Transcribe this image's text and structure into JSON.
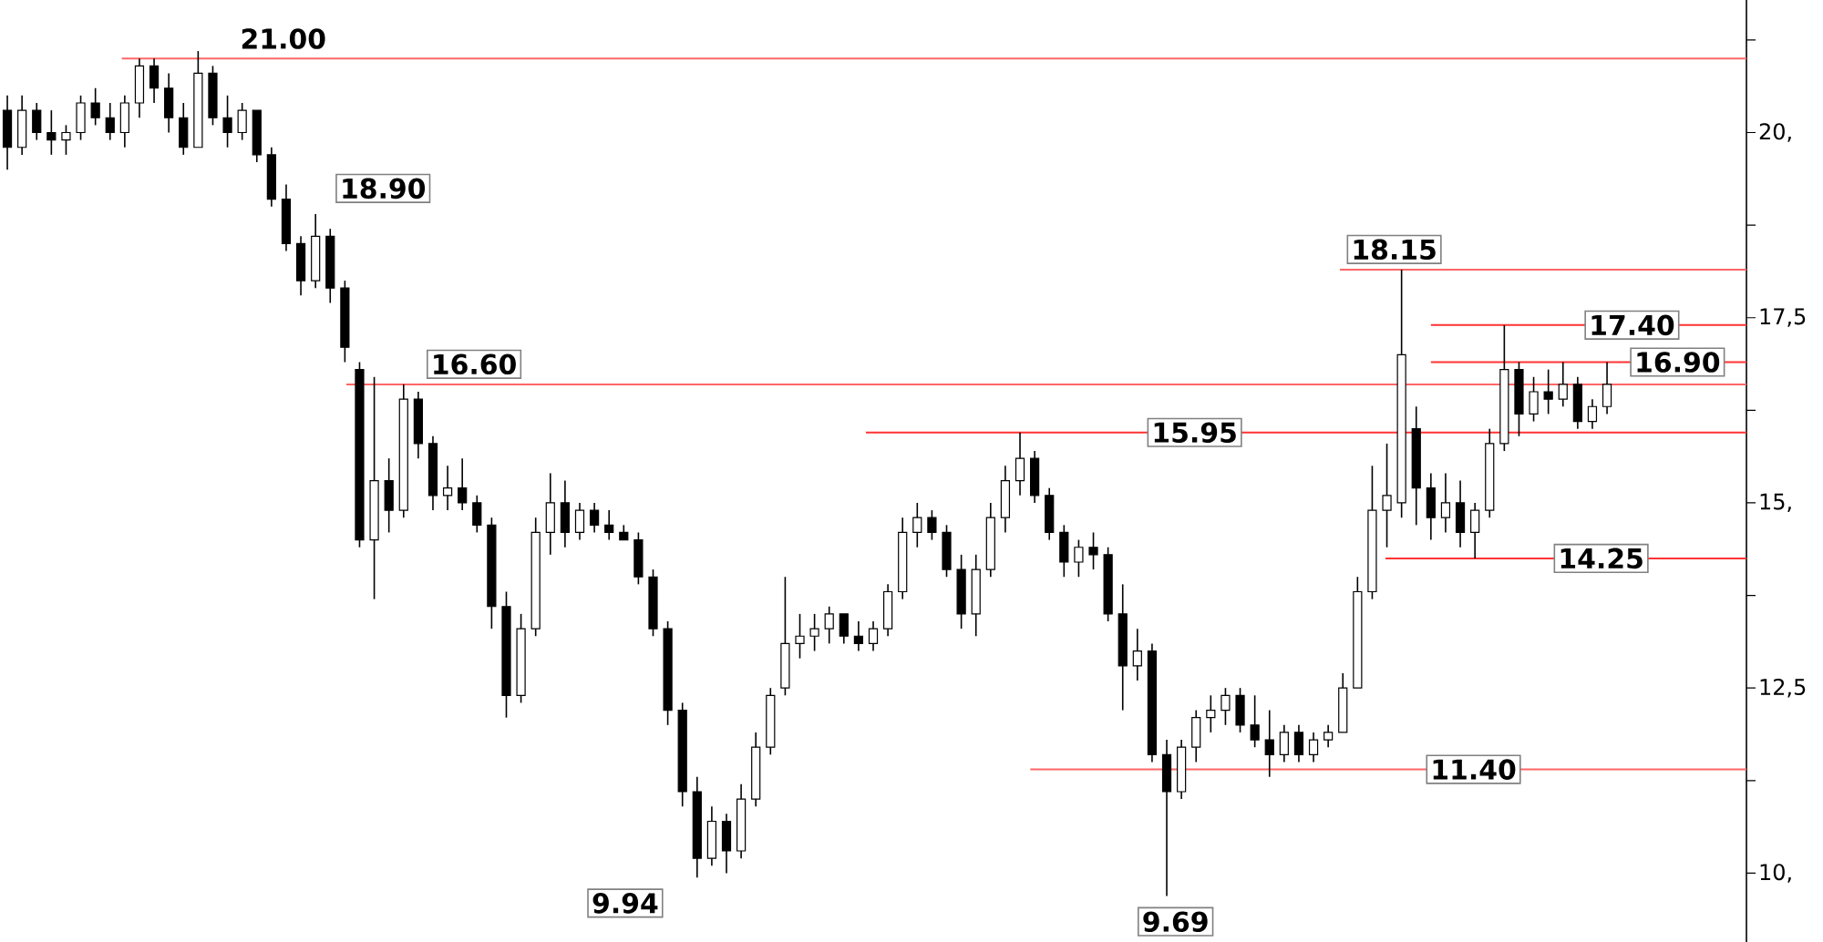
{
  "chart_data": {
    "type": "candlestick",
    "categories": [
      null,
      null,
      null,
      null,
      null,
      null,
      null,
      null,
      null,
      null,
      null,
      null,
      null,
      null,
      null,
      null,
      null,
      null,
      null,
      null,
      null,
      null,
      null,
      null,
      null,
      null,
      null,
      null,
      null,
      null,
      null,
      null,
      null,
      null,
      null,
      null,
      null,
      null,
      null,
      null,
      null,
      null,
      null,
      null,
      null,
      null,
      null,
      null,
      null,
      null,
      null,
      null,
      null,
      null,
      null,
      null,
      null,
      null,
      null,
      null,
      null,
      null,
      null,
      null,
      null,
      null,
      null,
      null,
      null,
      null,
      null,
      null,
      null,
      null,
      null,
      null,
      null,
      null,
      null,
      null,
      null,
      null,
      null,
      null,
      null,
      null,
      null,
      null,
      null,
      null,
      null,
      null,
      null,
      null,
      null,
      null,
      null,
      null,
      null,
      null,
      null,
      null,
      null,
      null,
      null,
      null,
      null,
      null,
      null,
      null,
      null,
      null,
      null,
      null,
      null,
      null,
      null,
      null,
      null
    ],
    "color": "#000000",
    "ohlc": [
      [
        20.3,
        20.5,
        19.5,
        19.8
      ],
      [
        19.8,
        20.5,
        19.7,
        20.3
      ],
      [
        20.3,
        20.4,
        19.9,
        20.0
      ],
      [
        20.0,
        20.3,
        19.7,
        19.9
      ],
      [
        19.9,
        20.1,
        19.7,
        20.0
      ],
      [
        20.0,
        20.5,
        19.9,
        20.4
      ],
      [
        20.4,
        20.6,
        20.1,
        20.2
      ],
      [
        20.2,
        20.4,
        19.9,
        20.0
      ],
      [
        20.0,
        20.5,
        19.8,
        20.4
      ],
      [
        20.4,
        21.0,
        20.2,
        20.9
      ],
      [
        20.9,
        21.0,
        20.4,
        20.6
      ],
      [
        20.6,
        20.8,
        20.0,
        20.2
      ],
      [
        20.2,
        20.4,
        19.7,
        19.8
      ],
      [
        19.8,
        21.1,
        19.8,
        20.8
      ],
      [
        20.8,
        20.9,
        20.1,
        20.2
      ],
      [
        20.2,
        20.5,
        19.8,
        20.0
      ],
      [
        20.0,
        20.4,
        19.9,
        20.3
      ],
      [
        20.3,
        20.3,
        19.6,
        19.7
      ],
      [
        19.7,
        19.8,
        19.0,
        19.1
      ],
      [
        19.1,
        19.3,
        18.4,
        18.5
      ],
      [
        18.5,
        18.6,
        17.8,
        18.0
      ],
      [
        18.0,
        18.9,
        17.9,
        18.6
      ],
      [
        18.6,
        18.7,
        17.7,
        17.9
      ],
      [
        17.9,
        18.0,
        16.9,
        17.1
      ],
      [
        16.8,
        16.9,
        14.4,
        14.5
      ],
      [
        14.5,
        16.7,
        13.7,
        15.3
      ],
      [
        15.3,
        15.6,
        14.6,
        14.9
      ],
      [
        14.9,
        16.6,
        14.8,
        16.4
      ],
      [
        16.4,
        16.5,
        15.6,
        15.8
      ],
      [
        15.8,
        15.9,
        14.9,
        15.1
      ],
      [
        15.1,
        15.5,
        14.9,
        15.2
      ],
      [
        15.2,
        15.6,
        14.9,
        15.0
      ],
      [
        15.0,
        15.1,
        14.6,
        14.7
      ],
      [
        14.7,
        14.8,
        13.3,
        13.6
      ],
      [
        13.6,
        13.8,
        12.1,
        12.4
      ],
      [
        12.4,
        13.5,
        12.3,
        13.3
      ],
      [
        13.3,
        14.8,
        13.2,
        14.6
      ],
      [
        14.6,
        15.4,
        14.3,
        15.0
      ],
      [
        15.0,
        15.3,
        14.4,
        14.6
      ],
      [
        14.6,
        15.0,
        14.5,
        14.9
      ],
      [
        14.9,
        15.0,
        14.6,
        14.7
      ],
      [
        14.7,
        14.9,
        14.5,
        14.6
      ],
      [
        14.6,
        14.7,
        14.5,
        14.5
      ],
      [
        14.5,
        14.6,
        13.9,
        14.0
      ],
      [
        14.0,
        14.1,
        13.2,
        13.3
      ],
      [
        13.3,
        13.4,
        12.0,
        12.2
      ],
      [
        12.2,
        12.3,
        10.9,
        11.1
      ],
      [
        11.1,
        11.3,
        9.94,
        10.2
      ],
      [
        10.2,
        10.9,
        10.1,
        10.7
      ],
      [
        10.7,
        10.8,
        10.0,
        10.3
      ],
      [
        10.3,
        11.2,
        10.2,
        11.0
      ],
      [
        11.0,
        11.9,
        10.9,
        11.7
      ],
      [
        11.7,
        12.5,
        11.6,
        12.4
      ],
      [
        12.5,
        14.0,
        12.4,
        13.1
      ],
      [
        13.1,
        13.5,
        12.9,
        13.2
      ],
      [
        13.2,
        13.5,
        13.0,
        13.3
      ],
      [
        13.3,
        13.6,
        13.1,
        13.5
      ],
      [
        13.5,
        13.5,
        13.1,
        13.2
      ],
      [
        13.2,
        13.4,
        13.0,
        13.1
      ],
      [
        13.1,
        13.4,
        13.0,
        13.3
      ],
      [
        13.3,
        13.9,
        13.2,
        13.8
      ],
      [
        13.8,
        14.8,
        13.7,
        14.6
      ],
      [
        14.6,
        15.0,
        14.4,
        14.8
      ],
      [
        14.8,
        14.9,
        14.5,
        14.6
      ],
      [
        14.6,
        14.7,
        14.0,
        14.1
      ],
      [
        14.1,
        14.3,
        13.3,
        13.5
      ],
      [
        13.5,
        14.3,
        13.2,
        14.1
      ],
      [
        14.1,
        15.0,
        14.0,
        14.8
      ],
      [
        14.8,
        15.5,
        14.6,
        15.3
      ],
      [
        15.3,
        15.95,
        15.1,
        15.6
      ],
      [
        15.6,
        15.7,
        15.0,
        15.1
      ],
      [
        15.1,
        15.2,
        14.5,
        14.6
      ],
      [
        14.6,
        14.7,
        14.0,
        14.2
      ],
      [
        14.2,
        14.5,
        14.0,
        14.4
      ],
      [
        14.4,
        14.6,
        14.1,
        14.3
      ],
      [
        14.3,
        14.4,
        13.4,
        13.5
      ],
      [
        13.5,
        13.9,
        12.2,
        12.8
      ],
      [
        12.8,
        13.3,
        12.6,
        13.0
      ],
      [
        13.0,
        13.1,
        11.5,
        11.6
      ],
      [
        11.6,
        11.8,
        9.69,
        11.1
      ],
      [
        11.1,
        11.8,
        11.0,
        11.7
      ],
      [
        11.7,
        12.2,
        11.5,
        12.1
      ],
      [
        12.1,
        12.4,
        11.9,
        12.2
      ],
      [
        12.2,
        12.5,
        12.0,
        12.4
      ],
      [
        12.4,
        12.5,
        11.9,
        12.0
      ],
      [
        12.0,
        12.4,
        11.7,
        11.8
      ],
      [
        11.8,
        12.2,
        11.3,
        11.6
      ],
      [
        11.6,
        12.0,
        11.5,
        11.9
      ],
      [
        11.9,
        12.0,
        11.5,
        11.6
      ],
      [
        11.6,
        11.9,
        11.5,
        11.8
      ],
      [
        11.8,
        12.0,
        11.7,
        11.9
      ],
      [
        11.9,
        12.7,
        11.9,
        12.5
      ],
      [
        12.5,
        14.0,
        12.5,
        13.8
      ],
      [
        13.8,
        15.5,
        13.7,
        14.9
      ],
      [
        14.9,
        15.8,
        14.4,
        15.1
      ],
      [
        15.0,
        18.15,
        14.8,
        17.0
      ],
      [
        16.0,
        16.3,
        14.7,
        15.2
      ],
      [
        15.2,
        15.4,
        14.5,
        14.8
      ],
      [
        14.8,
        15.4,
        14.6,
        15.0
      ],
      [
        15.0,
        15.3,
        14.4,
        14.6
      ],
      [
        14.6,
        15.0,
        14.25,
        14.9
      ],
      [
        14.9,
        16.0,
        14.8,
        15.8
      ],
      [
        15.8,
        17.4,
        15.7,
        16.8
      ],
      [
        16.8,
        16.9,
        15.9,
        16.2
      ],
      [
        16.2,
        16.7,
        16.1,
        16.5
      ],
      [
        16.5,
        16.8,
        16.2,
        16.4
      ],
      [
        16.4,
        16.9,
        16.3,
        16.6
      ],
      [
        16.6,
        16.7,
        16.0,
        16.1
      ],
      [
        16.1,
        16.4,
        16.0,
        16.3
      ],
      [
        16.3,
        16.9,
        16.2,
        16.6
      ],
      null,
      null,
      null,
      null,
      null,
      null,
      null,
      null,
      null
    ],
    "ylim": [
      9.07,
      21.79
    ],
    "yticks": [
      {
        "value": 10,
        "label": "10,"
      },
      {
        "value": 11.25,
        "label": null
      },
      {
        "value": 12.5,
        "label": "12,5"
      },
      {
        "value": 13.75,
        "label": null
      },
      {
        "value": 15,
        "label": "15,"
      },
      {
        "value": 16.25,
        "label": null
      },
      {
        "value": 17.5,
        "label": "17,5"
      },
      {
        "value": 18.75,
        "label": null
      },
      {
        "value": 20,
        "label": "20,"
      },
      {
        "value": 21.25,
        "label": null
      }
    ],
    "tick_labels": "y",
    "ref_lines": [
      {
        "axis": "y",
        "value": 21.0,
        "label": "21.00",
        "color": "#ff6666"
      },
      {
        "axis": "y",
        "value": 16.6,
        "label": "16.60",
        "color": "#ff6666"
      },
      {
        "axis": "y",
        "value": 15.95,
        "label": "15.95",
        "color": "#ff3333"
      },
      {
        "axis": "y",
        "value": 18.15,
        "label": "18.15",
        "color": "#ff6666"
      },
      {
        "axis": "y",
        "value": 17.4,
        "label": "17.40",
        "color": "#ff3333"
      },
      {
        "axis": "y",
        "value": 16.9,
        "label": "16.90",
        "color": "#ff3333"
      },
      {
        "axis": "y",
        "value": 14.25,
        "label": "14.25",
        "color": "#ff3333"
      },
      {
        "axis": "y",
        "value": 11.4,
        "label": "11.40",
        "color": "#ff6666"
      }
    ],
    "annotations": [
      "18.90",
      "9.94",
      "9.69"
    ]
  }
}
